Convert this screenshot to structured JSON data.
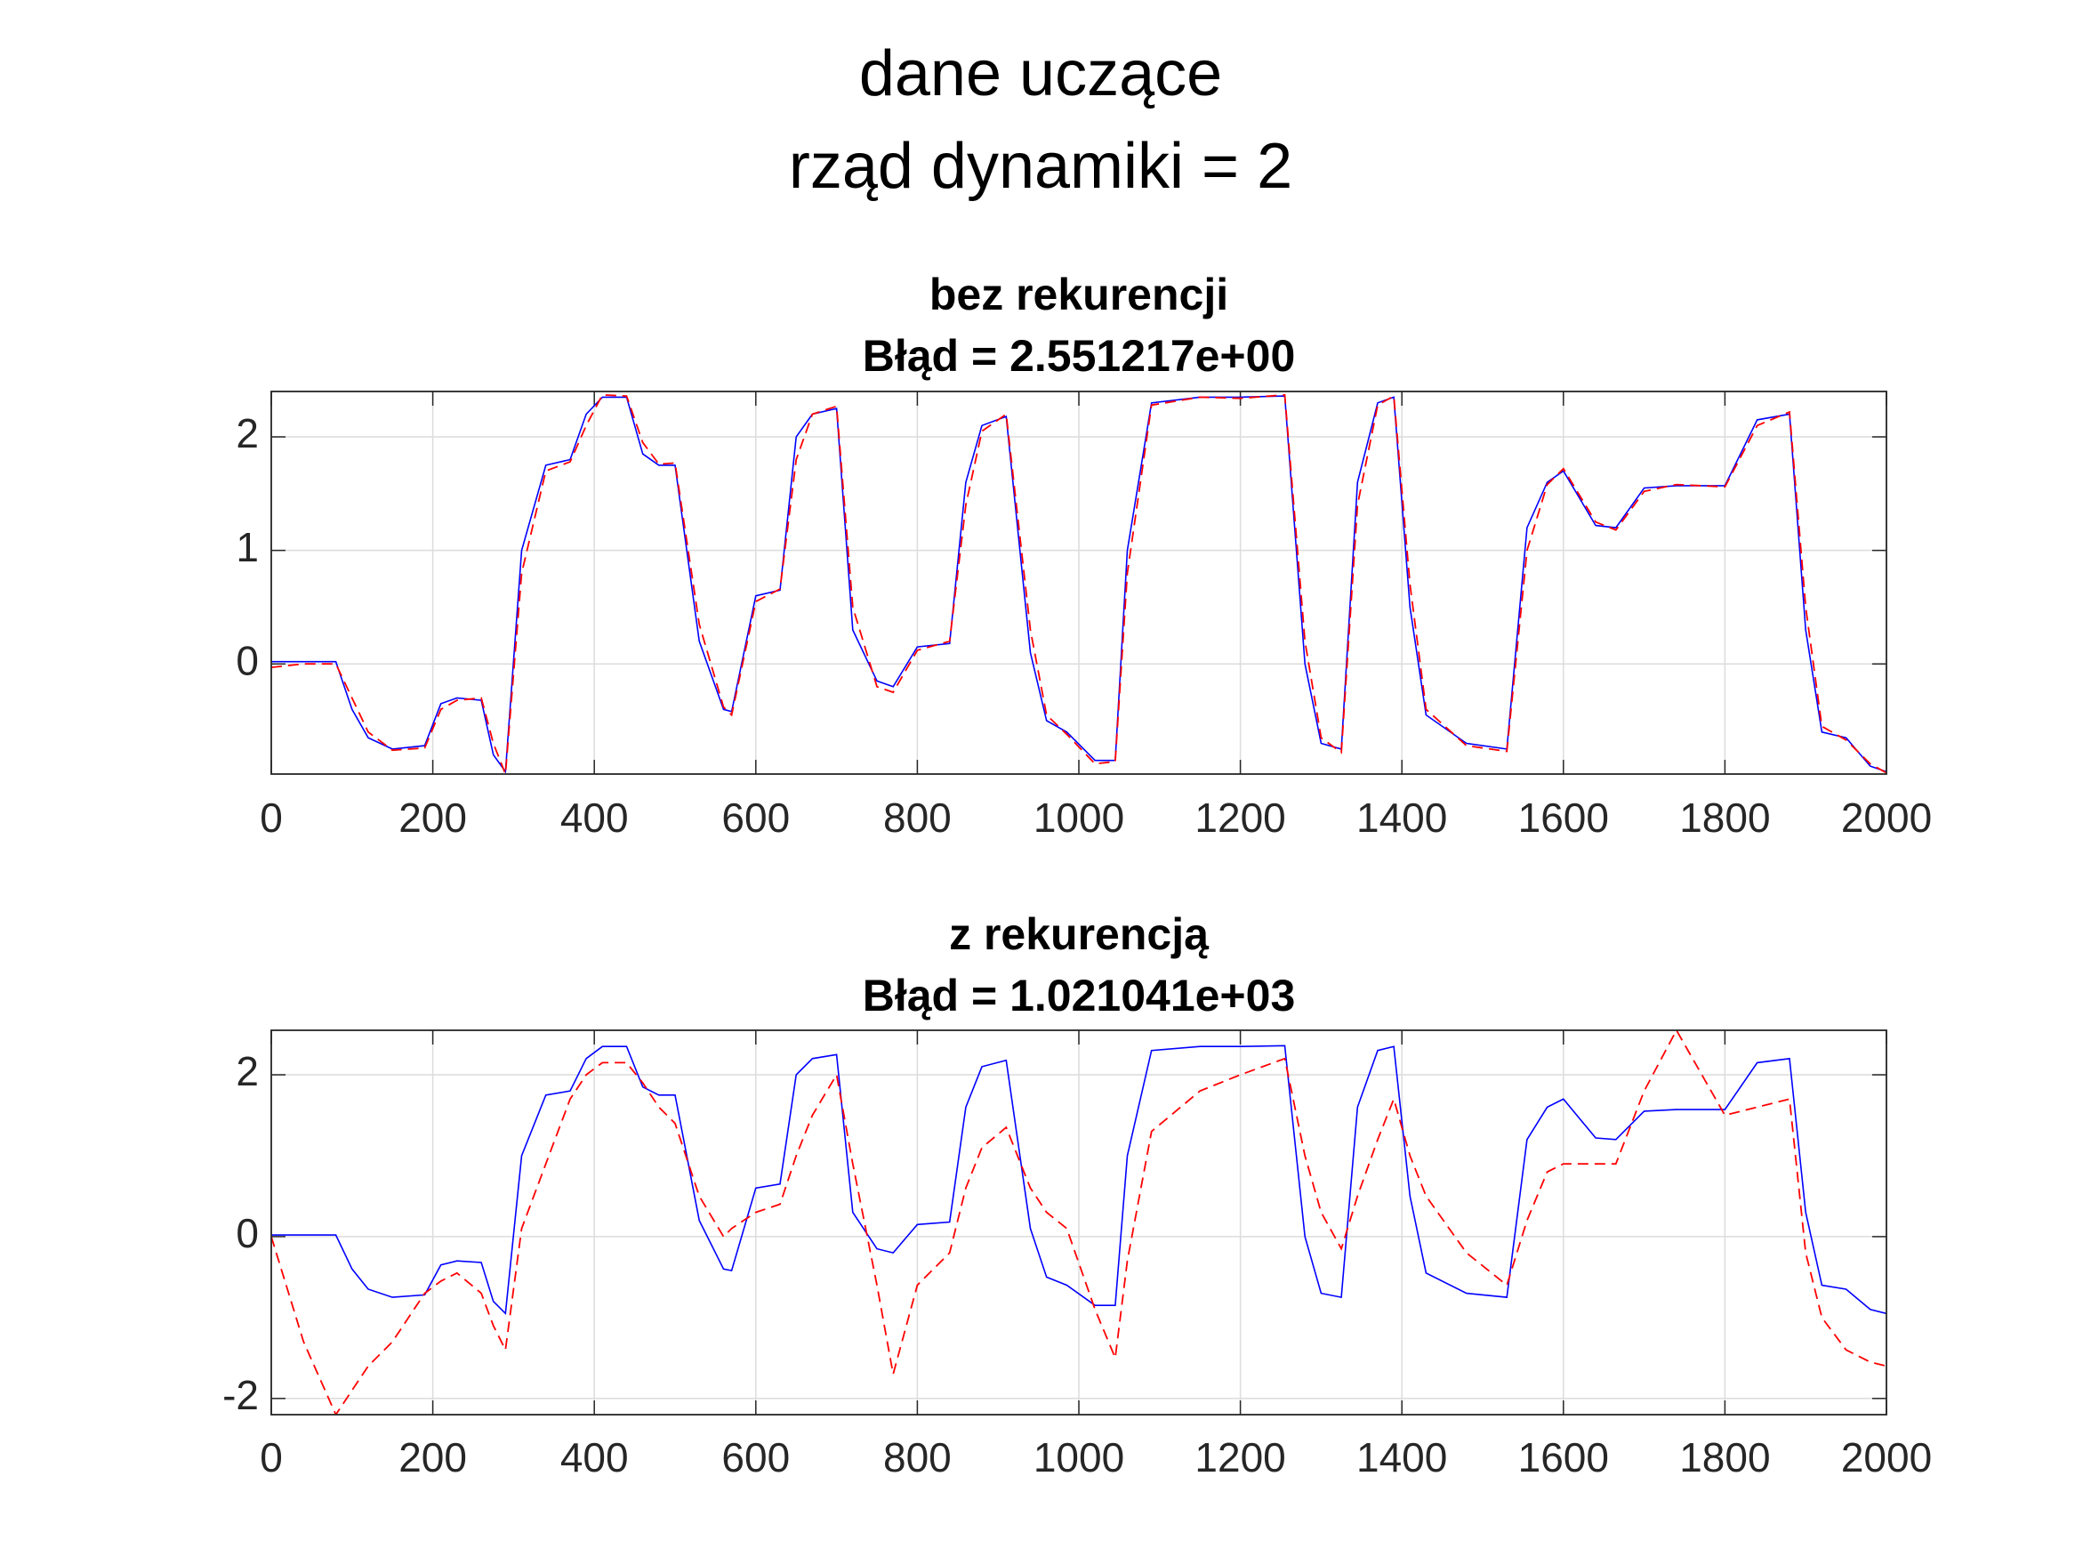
{
  "suptitle": [
    "dane uczące",
    "rząd dynamiki = 2"
  ],
  "chart_data": [
    {
      "type": "line",
      "title": [
        "bez rekurencji",
        "Błąd = 2.551217e+00"
      ],
      "x": [
        0,
        40,
        80,
        100,
        120,
        150,
        190,
        210,
        230,
        260,
        275,
        290,
        310,
        340,
        370,
        390,
        410,
        440,
        460,
        480,
        500,
        530,
        560,
        570,
        600,
        630,
        650,
        670,
        700,
        720,
        750,
        770,
        800,
        840,
        860,
        880,
        910,
        940,
        960,
        985,
        1020,
        1045,
        1060,
        1090,
        1150,
        1200,
        1255,
        1280,
        1300,
        1325,
        1345,
        1370,
        1390,
        1410,
        1430,
        1480,
        1530,
        1555,
        1580,
        1600,
        1640,
        1665,
        1700,
        1740,
        1800,
        1840,
        1880,
        1900,
        1920,
        1950,
        1980,
        2000
      ],
      "xlim": [
        0,
        2000
      ],
      "xticks": [
        0,
        200,
        400,
        600,
        800,
        1000,
        1200,
        1400,
        1600,
        1800,
        2000
      ],
      "ylim": [
        -0.97,
        2.4
      ],
      "yticks": [
        0,
        1,
        2
      ],
      "grid": true,
      "series": [
        {
          "color": "#0000ff",
          "dash": false,
          "values": [
            0.02,
            0.02,
            0.02,
            -0.4,
            -0.65,
            -0.75,
            -0.72,
            -0.35,
            -0.3,
            -0.32,
            -0.8,
            -0.95,
            1.0,
            1.75,
            1.8,
            2.2,
            2.35,
            2.35,
            1.85,
            1.75,
            1.75,
            0.2,
            -0.4,
            -0.42,
            0.6,
            0.65,
            2.0,
            2.2,
            2.25,
            0.3,
            -0.15,
            -0.2,
            0.15,
            0.18,
            1.6,
            2.1,
            2.18,
            0.1,
            -0.5,
            -0.6,
            -0.85,
            -0.85,
            1.0,
            2.3,
            2.35,
            2.35,
            2.36,
            0.0,
            -0.7,
            -0.75,
            1.6,
            2.3,
            2.35,
            0.5,
            -0.45,
            -0.7,
            -0.75,
            1.2,
            1.6,
            1.7,
            1.22,
            1.2,
            1.55,
            1.57,
            1.57,
            2.15,
            2.2,
            0.3,
            -0.6,
            -0.65,
            -0.9,
            -0.95
          ]
        },
        {
          "color": "#ff0000",
          "dash": true,
          "values": [
            -0.03,
            0.0,
            0.0,
            -0.3,
            -0.6,
            -0.76,
            -0.74,
            -0.4,
            -0.32,
            -0.3,
            -0.7,
            -0.97,
            0.8,
            1.7,
            1.78,
            2.1,
            2.37,
            2.36,
            1.95,
            1.76,
            1.77,
            0.35,
            -0.38,
            -0.45,
            0.55,
            0.66,
            1.8,
            2.2,
            2.27,
            0.5,
            -0.2,
            -0.25,
            0.12,
            0.2,
            1.4,
            2.05,
            2.2,
            0.3,
            -0.45,
            -0.62,
            -0.88,
            -0.86,
            0.8,
            2.28,
            2.35,
            2.34,
            2.37,
            0.2,
            -0.65,
            -0.78,
            1.4,
            2.28,
            2.36,
            0.7,
            -0.4,
            -0.72,
            -0.77,
            1.0,
            1.58,
            1.72,
            1.25,
            1.18,
            1.52,
            1.58,
            1.56,
            2.1,
            2.22,
            0.5,
            -0.55,
            -0.67,
            -0.88,
            -0.96
          ]
        }
      ]
    },
    {
      "type": "line",
      "title": [
        "z rekurencją",
        "Błąd = 1.021041e+03"
      ],
      "x": [
        0,
        40,
        80,
        100,
        120,
        150,
        190,
        210,
        230,
        260,
        275,
        290,
        310,
        340,
        370,
        390,
        410,
        440,
        460,
        480,
        500,
        530,
        560,
        570,
        600,
        630,
        650,
        670,
        700,
        720,
        750,
        770,
        800,
        840,
        860,
        880,
        910,
        940,
        960,
        985,
        1020,
        1045,
        1060,
        1090,
        1150,
        1200,
        1255,
        1280,
        1300,
        1325,
        1345,
        1370,
        1390,
        1410,
        1430,
        1480,
        1530,
        1555,
        1580,
        1600,
        1640,
        1665,
        1700,
        1740,
        1800,
        1840,
        1880,
        1900,
        1920,
        1950,
        1980,
        2000
      ],
      "xlim": [
        0,
        2000
      ],
      "xticks": [
        0,
        200,
        400,
        600,
        800,
        1000,
        1200,
        1400,
        1600,
        1800,
        2000
      ],
      "ylim": [
        -2.2,
        2.55
      ],
      "yticks": [
        -2,
        0,
        2
      ],
      "grid": true,
      "series": [
        {
          "color": "#0000ff",
          "dash": false,
          "values": [
            0.02,
            0.02,
            0.02,
            -0.4,
            -0.65,
            -0.75,
            -0.72,
            -0.35,
            -0.3,
            -0.32,
            -0.8,
            -0.95,
            1.0,
            1.75,
            1.8,
            2.2,
            2.35,
            2.35,
            1.85,
            1.75,
            1.75,
            0.2,
            -0.4,
            -0.42,
            0.6,
            0.65,
            2.0,
            2.2,
            2.25,
            0.3,
            -0.15,
            -0.2,
            0.15,
            0.18,
            1.6,
            2.1,
            2.18,
            0.1,
            -0.5,
            -0.6,
            -0.85,
            -0.85,
            1.0,
            2.3,
            2.35,
            2.35,
            2.36,
            0.0,
            -0.7,
            -0.75,
            1.6,
            2.3,
            2.35,
            0.5,
            -0.45,
            -0.7,
            -0.75,
            1.2,
            1.6,
            1.7,
            1.22,
            1.2,
            1.55,
            1.57,
            1.57,
            2.15,
            2.2,
            0.3,
            -0.6,
            -0.65,
            -0.9,
            -0.95
          ]
        },
        {
          "color": "#ff0000",
          "dash": true,
          "values": [
            0,
            -1.3,
            -2.2,
            -1.9,
            -1.6,
            -1.3,
            -0.7,
            -0.55,
            -0.45,
            -0.7,
            -1.1,
            -1.4,
            0.1,
            0.9,
            1.7,
            2.0,
            2.15,
            2.15,
            1.9,
            1.6,
            1.4,
            0.5,
            0.0,
            0.1,
            0.3,
            0.4,
            1.0,
            1.5,
            2.0,
            0.9,
            -0.6,
            -1.7,
            -0.6,
            -0.2,
            0.6,
            1.1,
            1.35,
            0.6,
            0.3,
            0.1,
            -0.9,
            -1.5,
            -0.3,
            1.3,
            1.8,
            2.0,
            2.2,
            1.0,
            0.3,
            -0.15,
            0.5,
            1.2,
            1.7,
            1.0,
            0.5,
            -0.2,
            -0.6,
            0.2,
            0.8,
            0.9,
            0.9,
            0.9,
            1.8,
            2.55,
            1.5,
            1.6,
            1.7,
            -0.2,
            -1.0,
            -1.4,
            -1.55,
            -1.6
          ]
        }
      ]
    }
  ]
}
